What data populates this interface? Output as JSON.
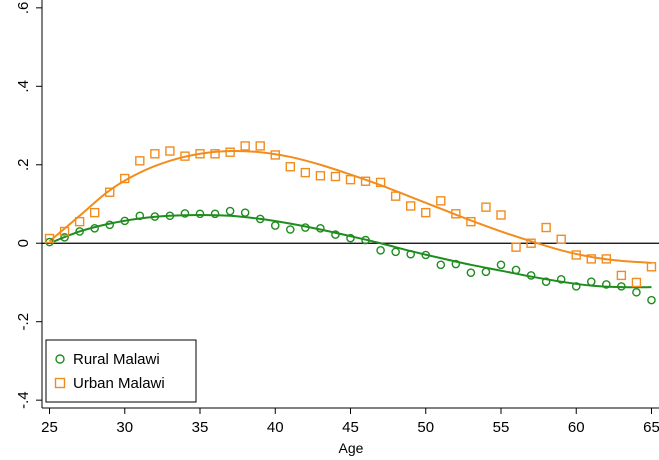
{
  "chart_data": {
    "type": "scatter",
    "xlabel": "Age",
    "ylabel": "",
    "title": "",
    "xlim": [
      24.5,
      65.5
    ],
    "ylim": [
      -0.42,
      0.62
    ],
    "xticks": [
      25,
      30,
      35,
      40,
      45,
      50,
      55,
      60,
      65
    ],
    "xtick_labels": [
      "25",
      "30",
      "35",
      "40",
      "45",
      "50",
      "55",
      "60",
      "65"
    ],
    "yticks": [
      -0.4,
      -0.2,
      0,
      0.2,
      0.4,
      0.6
    ],
    "ytick_labels": [
      "-.4",
      "-.2",
      "0",
      ".2",
      ".4",
      ".6"
    ],
    "reference_line_y": 0,
    "legend_position": "bottom-left",
    "series": [
      {
        "name": "Rural Malawi",
        "color": "#1e8c1e",
        "marker": "circle",
        "x": [
          25,
          26,
          27,
          28,
          29,
          30,
          31,
          32,
          33,
          34,
          35,
          36,
          37,
          38,
          39,
          40,
          41,
          42,
          43,
          44,
          45,
          46,
          47,
          48,
          49,
          50,
          51,
          52,
          53,
          54,
          55,
          56,
          57,
          58,
          59,
          60,
          61,
          62,
          63,
          64,
          65
        ],
        "values": [
          0.003,
          0.015,
          0.03,
          0.038,
          0.047,
          0.057,
          0.07,
          0.068,
          0.07,
          0.076,
          0.075,
          0.075,
          0.082,
          0.078,
          0.062,
          0.045,
          0.035,
          0.04,
          0.038,
          0.022,
          0.013,
          0.008,
          -0.018,
          -0.022,
          -0.028,
          -0.03,
          -0.055,
          -0.053,
          -0.075,
          -0.073,
          -0.055,
          -0.068,
          -0.082,
          -0.098,
          -0.092,
          -0.11,
          -0.098,
          -0.105,
          -0.11,
          -0.125,
          -0.145
        ],
        "fit": {
          "x": [
            25,
            27,
            29,
            31,
            33,
            35,
            37,
            39,
            41,
            43,
            45,
            47,
            49,
            51,
            53,
            55,
            57,
            59,
            61,
            63,
            65
          ],
          "values": [
            0.0,
            0.03,
            0.05,
            0.063,
            0.07,
            0.072,
            0.07,
            0.062,
            0.05,
            0.035,
            0.018,
            0.0,
            -0.02,
            -0.038,
            -0.055,
            -0.07,
            -0.085,
            -0.098,
            -0.108,
            -0.112,
            -0.112
          ]
        }
      },
      {
        "name": "Urban Malawi",
        "color": "#f28c1c",
        "marker": "square",
        "x": [
          25,
          26,
          27,
          28,
          29,
          30,
          31,
          32,
          33,
          34,
          35,
          36,
          37,
          38,
          39,
          40,
          41,
          42,
          43,
          44,
          45,
          46,
          47,
          48,
          49,
          50,
          51,
          52,
          53,
          54,
          55,
          56,
          57,
          58,
          59,
          60,
          61,
          62,
          63,
          64,
          65
        ],
        "values": [
          0.012,
          0.03,
          0.055,
          0.078,
          0.13,
          0.165,
          0.21,
          0.228,
          0.235,
          0.222,
          0.228,
          0.228,
          0.232,
          0.248,
          0.248,
          0.225,
          0.195,
          0.18,
          0.172,
          0.17,
          0.162,
          0.158,
          0.155,
          0.12,
          0.095,
          0.078,
          0.108,
          0.075,
          0.055,
          0.092,
          0.072,
          -0.01,
          0.0,
          0.04,
          0.01,
          -0.03,
          -0.04,
          -0.04,
          -0.082,
          -0.1,
          -0.06
        ],
        "fit": {
          "x": [
            25,
            27,
            29,
            31,
            33,
            35,
            37,
            39,
            41,
            43,
            45,
            47,
            49,
            51,
            53,
            55,
            57,
            59,
            61,
            63,
            65
          ],
          "values": [
            0.005,
            0.07,
            0.135,
            0.18,
            0.21,
            0.228,
            0.235,
            0.232,
            0.22,
            0.2,
            0.175,
            0.148,
            0.118,
            0.088,
            0.058,
            0.03,
            0.005,
            -0.018,
            -0.035,
            -0.045,
            -0.05
          ]
        }
      }
    ]
  }
}
